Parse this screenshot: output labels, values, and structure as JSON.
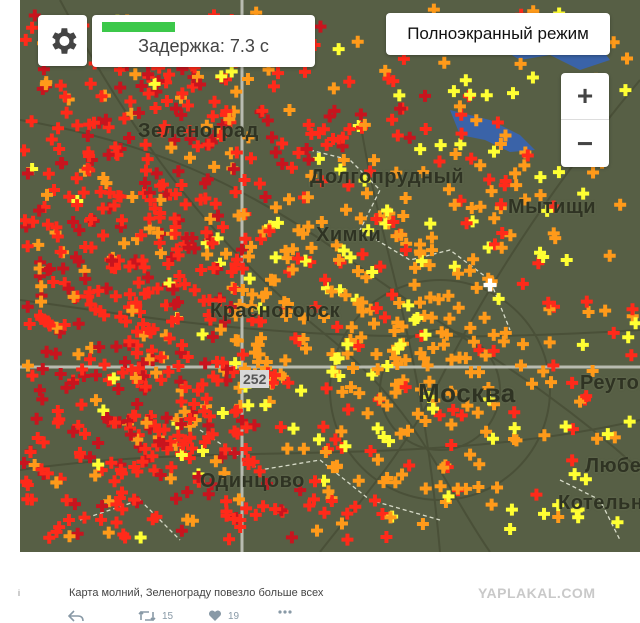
{
  "controls": {
    "delay_text": "Задержка: 7.3 с",
    "delay_progress": 0.33,
    "fullscreen_label": "Полноэкранный режим",
    "zoom_in": "+",
    "zoom_out": "−"
  },
  "map": {
    "places": [
      "Зеленоград",
      "Долгопрудный",
      "Химки",
      "Красногорск",
      "Москва",
      "Одинцово",
      "Мытищи",
      "Реутов",
      "Котельники",
      "Люберцы"
    ],
    "grid_label": "252",
    "colors": {
      "background": "#575f45",
      "strike_new": "#ffffff",
      "strike_recent": "#ffff33",
      "strike_mid": "#ff9a1a",
      "strike_old": "#ff2a1a",
      "strike_oldest": "#c8141e",
      "water": "#3a63a8"
    }
  },
  "post": {
    "caption": "Карта молний, Зеленограду повезло больше всех",
    "watermark": "YAPLAKAL.COM",
    "retweets": "15",
    "likes": "19",
    "left_mark": "i"
  },
  "icons": {
    "settings": "gear-icon",
    "reply": "reply-icon",
    "retweet": "retweet-icon",
    "like": "heart-icon",
    "more": "more-icon"
  }
}
